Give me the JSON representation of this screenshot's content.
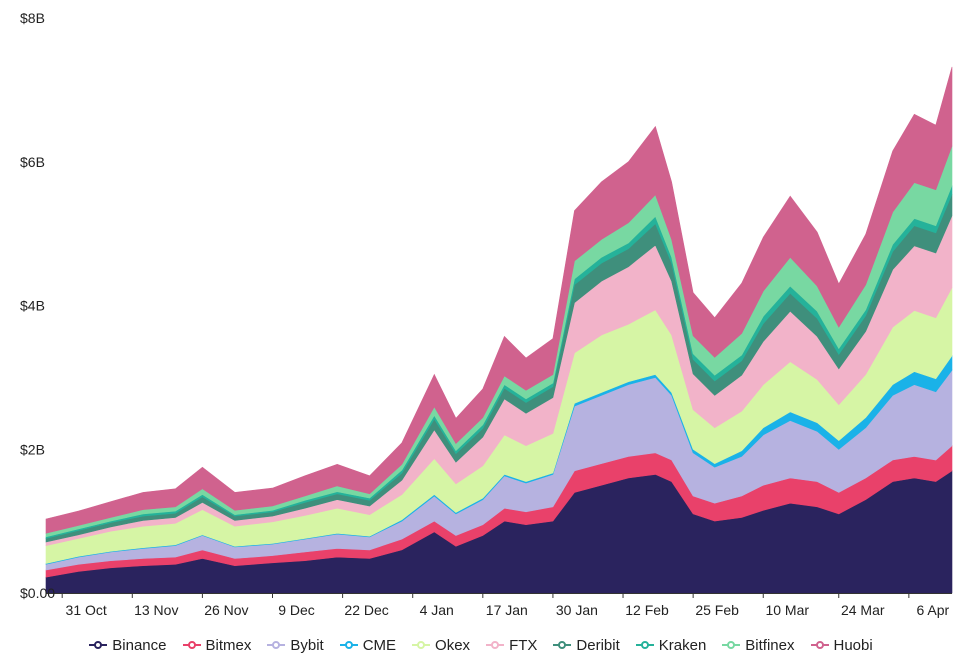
{
  "chart_data": {
    "type": "area",
    "stacked": true,
    "title": "",
    "xlabel": "",
    "ylabel": "",
    "y_unit": "B",
    "ylim": [
      0,
      8
    ],
    "y_ticks": [
      {
        "value": 0,
        "label": "$0.00"
      },
      {
        "value": 2,
        "label": "$2B"
      },
      {
        "value": 4,
        "label": "$4B"
      },
      {
        "value": 6,
        "label": "$6B"
      },
      {
        "value": 8,
        "label": "$8B"
      }
    ],
    "x_start": "2020-10-28",
    "x_end": "2021-04-14",
    "x_ticks": [
      {
        "date": "2020-10-31",
        "label": "31 Oct"
      },
      {
        "date": "2020-11-13",
        "label": "13 Nov"
      },
      {
        "date": "2020-11-26",
        "label": "26 Nov"
      },
      {
        "date": "2020-12-09",
        "label": "9 Dec"
      },
      {
        "date": "2020-12-22",
        "label": "22 Dec"
      },
      {
        "date": "2021-01-04",
        "label": "4 Jan"
      },
      {
        "date": "2021-01-17",
        "label": "17 Jan"
      },
      {
        "date": "2021-01-30",
        "label": "30 Jan"
      },
      {
        "date": "2021-02-12",
        "label": "12 Feb"
      },
      {
        "date": "2021-02-25",
        "label": "25 Feb"
      },
      {
        "date": "2021-03-10",
        "label": "10 Mar"
      },
      {
        "date": "2021-03-24",
        "label": "24 Mar"
      },
      {
        "date": "2021-04-06",
        "label": "6 Apr"
      }
    ],
    "x": [
      "2020-10-28",
      "2020-11-03",
      "2020-11-09",
      "2020-11-15",
      "2020-11-21",
      "2020-11-26",
      "2020-12-02",
      "2020-12-09",
      "2020-12-15",
      "2020-12-21",
      "2020-12-27",
      "2021-01-02",
      "2021-01-08",
      "2021-01-12",
      "2021-01-17",
      "2021-01-21",
      "2021-01-25",
      "2021-01-30",
      "2021-02-03",
      "2021-02-08",
      "2021-02-13",
      "2021-02-18",
      "2021-02-21",
      "2021-02-25",
      "2021-03-01",
      "2021-03-06",
      "2021-03-10",
      "2021-03-15",
      "2021-03-20",
      "2021-03-24",
      "2021-03-29",
      "2021-04-03",
      "2021-04-07",
      "2021-04-11",
      "2021-04-14"
    ],
    "series": [
      {
        "name": "Binance",
        "color": "#2a235e",
        "values": [
          0.22,
          0.3,
          0.35,
          0.38,
          0.4,
          0.48,
          0.38,
          0.42,
          0.45,
          0.5,
          0.48,
          0.6,
          0.85,
          0.65,
          0.8,
          1.0,
          0.95,
          1.0,
          1.4,
          1.5,
          1.6,
          1.65,
          1.55,
          1.1,
          1.0,
          1.05,
          1.15,
          1.25,
          1.2,
          1.1,
          1.3,
          1.55,
          1.6,
          1.55,
          1.7
        ]
      },
      {
        "name": "Bitmex",
        "color": "#e9416a",
        "values": [
          0.1,
          0.1,
          0.1,
          0.1,
          0.1,
          0.12,
          0.1,
          0.1,
          0.12,
          0.12,
          0.12,
          0.15,
          0.15,
          0.15,
          0.15,
          0.18,
          0.18,
          0.2,
          0.3,
          0.3,
          0.3,
          0.3,
          0.3,
          0.25,
          0.25,
          0.3,
          0.35,
          0.35,
          0.35,
          0.3,
          0.3,
          0.3,
          0.3,
          0.3,
          0.35
        ]
      },
      {
        "name": "Bybit",
        "color": "#b6b2e0",
        "values": [
          0.08,
          0.1,
          0.12,
          0.14,
          0.16,
          0.2,
          0.16,
          0.16,
          0.18,
          0.2,
          0.18,
          0.25,
          0.35,
          0.3,
          0.35,
          0.45,
          0.4,
          0.45,
          0.9,
          0.95,
          1.0,
          1.05,
          0.9,
          0.6,
          0.5,
          0.55,
          0.7,
          0.8,
          0.7,
          0.6,
          0.7,
          0.9,
          1.0,
          0.95,
          1.05
        ]
      },
      {
        "name": "CME",
        "color": "#1ab2e8",
        "values": [
          0.01,
          0.01,
          0.01,
          0.01,
          0.01,
          0.01,
          0.01,
          0.01,
          0.01,
          0.01,
          0.01,
          0.02,
          0.02,
          0.02,
          0.02,
          0.02,
          0.02,
          0.02,
          0.04,
          0.04,
          0.04,
          0.04,
          0.04,
          0.05,
          0.05,
          0.08,
          0.1,
          0.12,
          0.12,
          0.12,
          0.14,
          0.15,
          0.18,
          0.18,
          0.2
        ]
      },
      {
        "name": "Okex",
        "color": "#d6f5a5",
        "values": [
          0.25,
          0.25,
          0.28,
          0.3,
          0.3,
          0.35,
          0.28,
          0.3,
          0.32,
          0.35,
          0.3,
          0.35,
          0.5,
          0.4,
          0.45,
          0.55,
          0.5,
          0.55,
          0.7,
          0.8,
          0.8,
          0.9,
          0.8,
          0.55,
          0.5,
          0.55,
          0.6,
          0.7,
          0.6,
          0.5,
          0.6,
          0.8,
          0.85,
          0.85,
          0.95
        ]
      },
      {
        "name": "FTX",
        "color": "#f2b3c9",
        "values": [
          0.05,
          0.05,
          0.06,
          0.08,
          0.08,
          0.1,
          0.08,
          0.08,
          0.1,
          0.12,
          0.12,
          0.2,
          0.4,
          0.3,
          0.4,
          0.5,
          0.45,
          0.5,
          0.7,
          0.75,
          0.8,
          0.9,
          0.75,
          0.5,
          0.45,
          0.5,
          0.6,
          0.7,
          0.6,
          0.5,
          0.6,
          0.8,
          0.9,
          0.9,
          1.0
        ]
      },
      {
        "name": "Deribit",
        "color": "#3f8f7c",
        "values": [
          0.05,
          0.06,
          0.06,
          0.06,
          0.06,
          0.08,
          0.06,
          0.06,
          0.08,
          0.08,
          0.08,
          0.1,
          0.15,
          0.12,
          0.12,
          0.15,
          0.15,
          0.15,
          0.25,
          0.25,
          0.25,
          0.3,
          0.25,
          0.2,
          0.2,
          0.2,
          0.25,
          0.25,
          0.25,
          0.2,
          0.22,
          0.25,
          0.28,
          0.28,
          0.3
        ]
      },
      {
        "name": "Kraken",
        "color": "#25b29a",
        "values": [
          0.02,
          0.02,
          0.02,
          0.03,
          0.03,
          0.03,
          0.02,
          0.02,
          0.03,
          0.03,
          0.03,
          0.04,
          0.05,
          0.04,
          0.05,
          0.05,
          0.05,
          0.05,
          0.08,
          0.08,
          0.08,
          0.1,
          0.08,
          0.08,
          0.08,
          0.08,
          0.1,
          0.1,
          0.1,
          0.08,
          0.08,
          0.1,
          0.1,
          0.1,
          0.12
        ]
      },
      {
        "name": "Bitfinex",
        "color": "#78d8a2",
        "values": [
          0.05,
          0.05,
          0.05,
          0.06,
          0.06,
          0.08,
          0.06,
          0.06,
          0.06,
          0.08,
          0.06,
          0.08,
          0.12,
          0.1,
          0.1,
          0.12,
          0.12,
          0.12,
          0.25,
          0.25,
          0.28,
          0.3,
          0.25,
          0.25,
          0.25,
          0.3,
          0.35,
          0.4,
          0.35,
          0.3,
          0.35,
          0.45,
          0.5,
          0.5,
          0.55
        ]
      },
      {
        "name": "Huobi",
        "color": "#d0628e",
        "values": [
          0.2,
          0.2,
          0.22,
          0.24,
          0.25,
          0.3,
          0.25,
          0.25,
          0.28,
          0.3,
          0.25,
          0.3,
          0.45,
          0.35,
          0.4,
          0.55,
          0.45,
          0.5,
          0.7,
          0.8,
          0.85,
          0.95,
          0.8,
          0.6,
          0.55,
          0.7,
          0.75,
          0.85,
          0.75,
          0.6,
          0.7,
          0.85,
          0.95,
          0.9,
          1.1
        ]
      }
    ],
    "legend": "bottom-center",
    "grid": false
  }
}
